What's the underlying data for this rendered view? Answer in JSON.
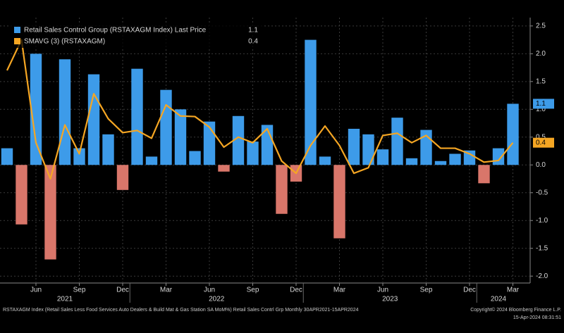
{
  "chart_data": {
    "type": "bar",
    "categories": [
      null,
      null,
      "Jun",
      null,
      null,
      "Sep",
      null,
      null,
      "Dec",
      null,
      null,
      "Mar",
      null,
      null,
      "Jun",
      null,
      null,
      "Sep",
      null,
      null,
      "Dec",
      null,
      null,
      "Mar",
      null,
      null,
      "Jun",
      null,
      null,
      "Sep",
      null,
      null,
      "Dec",
      null,
      null,
      "Mar"
    ],
    "year_labels": [
      "2021",
      "2022",
      "2023",
      "2024"
    ],
    "series": [
      {
        "name": "Retail Sales Control Group (RSTAXAGM Index) Last Price",
        "type": "bar",
        "color": "#3d9be9",
        "negative_color": "#d9766a",
        "values": [
          0.3,
          -1.07,
          2.0,
          -1.7,
          1.9,
          0.3,
          1.63,
          0.55,
          -0.45,
          1.73,
          0.15,
          1.35,
          1.0,
          0.25,
          0.78,
          -0.12,
          0.88,
          0.42,
          0.72,
          -0.88,
          -0.3,
          2.25,
          0.15,
          -1.32,
          0.65,
          0.55,
          0.28,
          0.85,
          0.12,
          0.63,
          0.07,
          0.2,
          0.26,
          -0.33,
          0.3,
          1.1
        ]
      },
      {
        "name": "SMAVG (3) (RSTAXAGM)",
        "type": "line",
        "color": "#f5a623",
        "values": [
          1.7,
          2.25,
          0.4,
          -0.25,
          0.72,
          0.2,
          1.28,
          0.83,
          0.58,
          0.62,
          0.48,
          1.08,
          0.88,
          0.87,
          0.68,
          0.32,
          0.5,
          0.4,
          0.65,
          0.07,
          -0.15,
          0.35,
          0.7,
          0.35,
          -0.15,
          -0.05,
          0.53,
          0.57,
          0.4,
          0.53,
          0.3,
          0.3,
          0.2,
          0.05,
          0.08,
          0.4
        ]
      }
    ],
    "ylim": [
      -2.2,
      2.65
    ],
    "yticks": [
      {
        "value": -2,
        "label": "-2.0"
      },
      -1.5,
      {
        "value": -1,
        "label": "-1.0"
      },
      -0.5,
      {
        "value": 0,
        "label": "0.0"
      },
      0.5,
      {
        "value": 1,
        "label": "1.0"
      },
      1.5,
      {
        "value": 2,
        "label": "2.0"
      },
      2.5
    ],
    "grid": true,
    "footer": "RSTAXAGM Index (Retail Sales Less Food Services Auto Dealers & Build Mat & Gas Station SA MoM%) Retail Sales Contrl Grp  Monthly 30APR2021-15APR2024",
    "copyright": "Copyright© 2024 Bloomberg Finance L.P.",
    "timestamp": "15-Apr-2024 08:31:51"
  }
}
